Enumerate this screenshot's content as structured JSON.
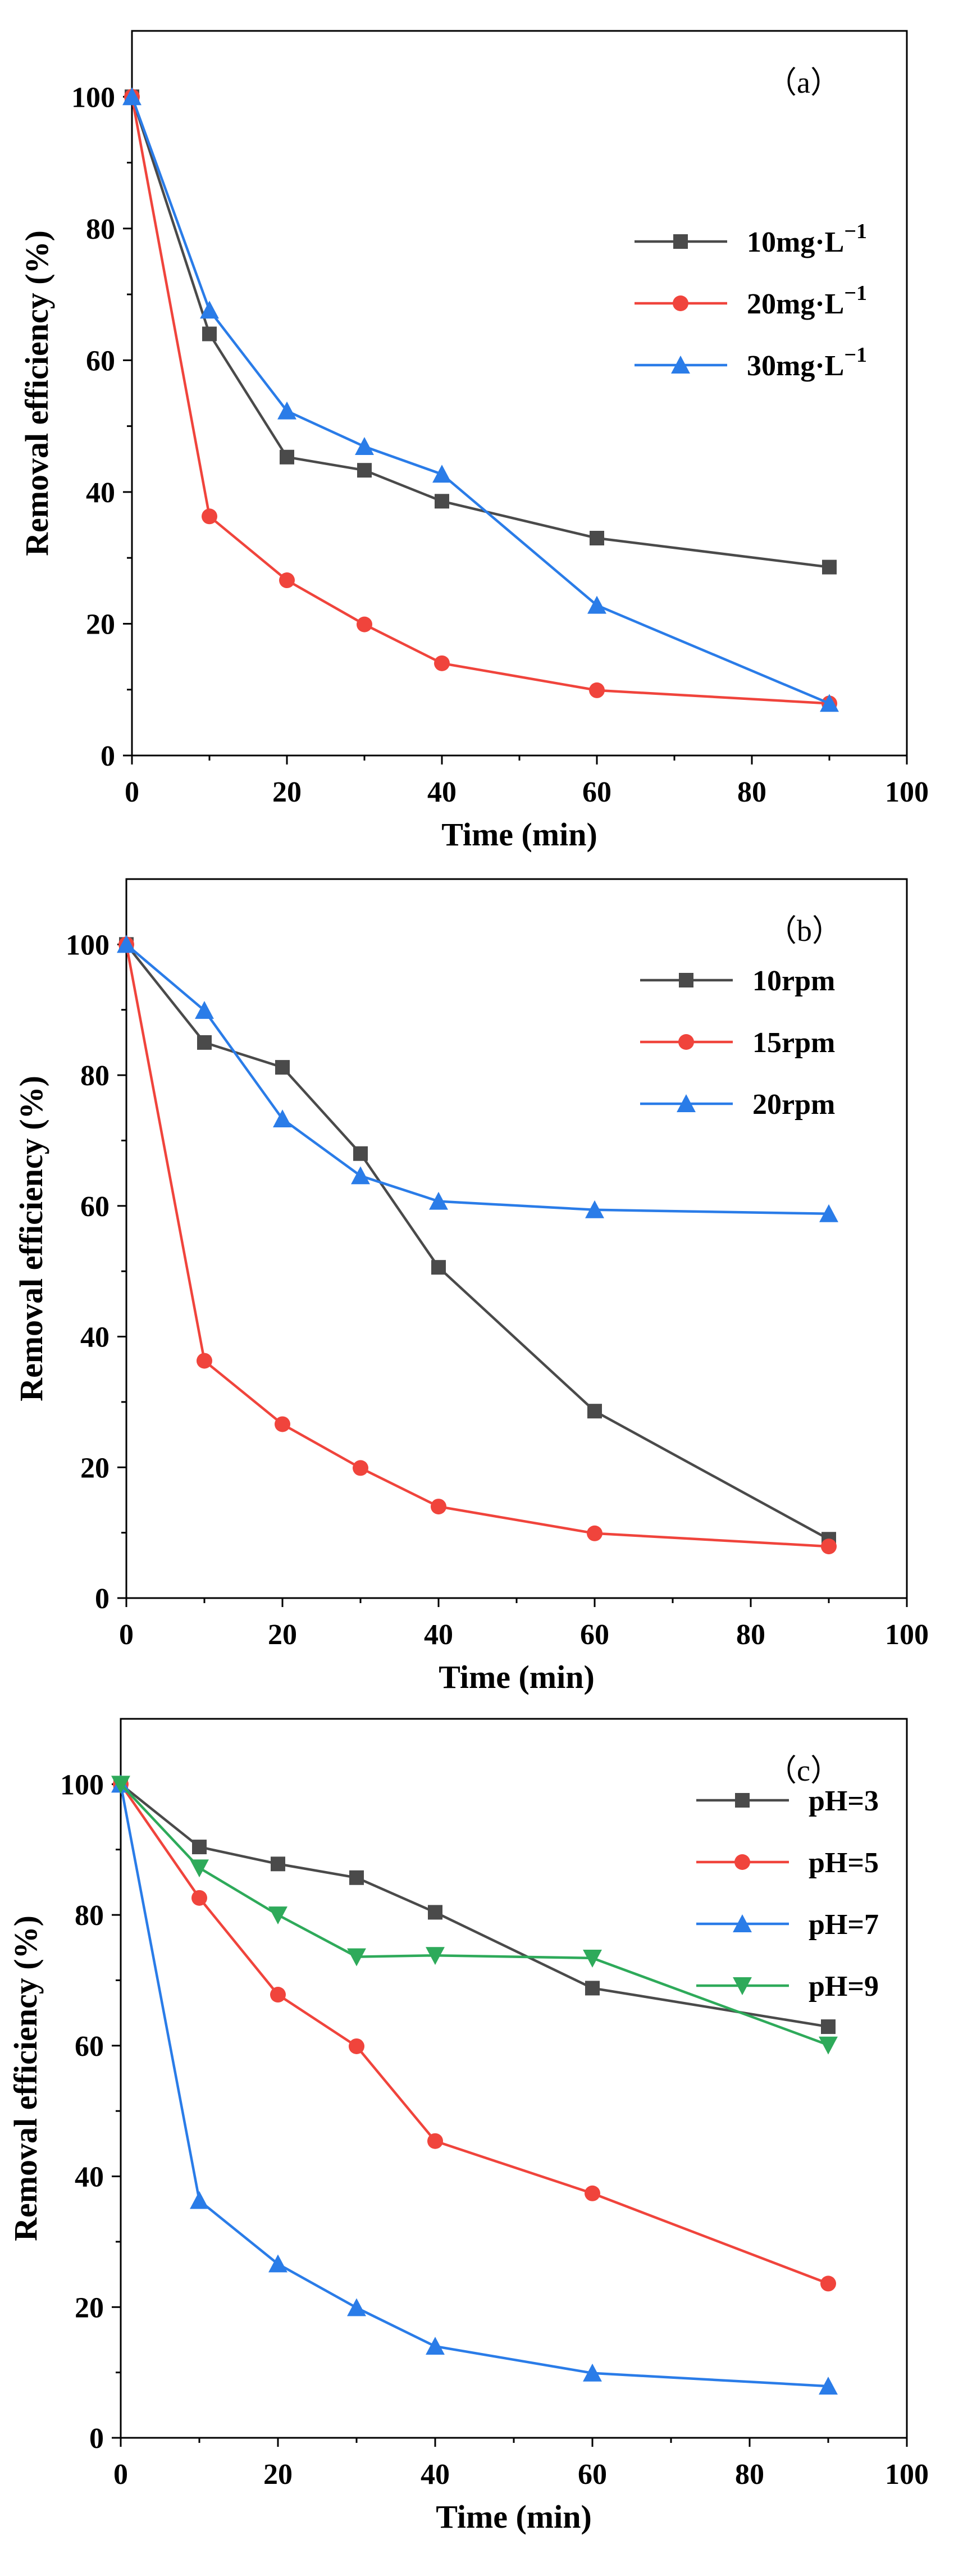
{
  "chart_data": [
    {
      "type": "line",
      "panel_label": "（a）",
      "xlabel": "Time (min)",
      "ylabel": "Removal efficiency (%)",
      "xlim": [
        0,
        100
      ],
      "ylim": [
        0,
        110
      ],
      "xticks": [
        0,
        20,
        40,
        60,
        80,
        100
      ],
      "yticks": [
        0,
        20,
        40,
        60,
        80,
        100
      ],
      "legend_position": "top-right",
      "x": [
        0,
        10,
        20,
        30,
        40,
        60,
        90
      ],
      "series": [
        {
          "name": "10mg·L",
          "sup": "−1",
          "color": "#4a4a4a",
          "marker": "square",
          "values": [
            100,
            64,
            45.3,
            43.3,
            38.6,
            33,
            28.6
          ]
        },
        {
          "name": "20mg·L",
          "sup": "−1",
          "color": "#f0443c",
          "marker": "circle",
          "values": [
            100,
            36.3,
            26.6,
            19.9,
            14,
            9.9,
            7.9
          ]
        },
        {
          "name": "30mg·L",
          "sup": "−1",
          "color": "#2a7ce8",
          "marker": "triangle-up",
          "values": [
            100,
            67.6,
            52.3,
            46.9,
            42.7,
            22.8,
            7.9
          ]
        }
      ]
    },
    {
      "type": "line",
      "panel_label": "（b）",
      "xlabel": "Time (min)",
      "ylabel": "Removal efficiency (%)",
      "xlim": [
        0,
        100
      ],
      "ylim": [
        0,
        110
      ],
      "xticks": [
        0,
        20,
        40,
        60,
        80,
        100
      ],
      "yticks": [
        0,
        20,
        40,
        60,
        80,
        100
      ],
      "legend_position": "top-right",
      "x": [
        0,
        10,
        20,
        30,
        40,
        60,
        90
      ],
      "series": [
        {
          "name": "10rpm",
          "color": "#4a4a4a",
          "marker": "square",
          "values": [
            100,
            85,
            81.2,
            68,
            50.6,
            28.6,
            9
          ]
        },
        {
          "name": "15rpm",
          "color": "#f0443c",
          "marker": "circle",
          "values": [
            100,
            36.3,
            26.6,
            19.9,
            14,
            9.9,
            7.9
          ]
        },
        {
          "name": "20rpm",
          "color": "#2a7ce8",
          "marker": "triangle-up",
          "values": [
            100,
            89.9,
            73.3,
            64.6,
            60.7,
            59.4,
            58.8
          ]
        }
      ]
    },
    {
      "type": "line",
      "panel_label": "（c）",
      "xlabel": "Time (min)",
      "ylabel": "Removal efficiency (%)",
      "xlim": [
        0,
        100
      ],
      "ylim": [
        0,
        110
      ],
      "xticks": [
        0,
        20,
        40,
        60,
        80,
        100
      ],
      "yticks": [
        0,
        20,
        40,
        60,
        80,
        100
      ],
      "legend_position": "top-right",
      "x": [
        0,
        10,
        20,
        30,
        40,
        60,
        90
      ],
      "series": [
        {
          "name": "pH=3",
          "color": "#4a4a4a",
          "marker": "square",
          "values": [
            100,
            90.4,
            87.8,
            85.7,
            80.4,
            68.8,
            62.9
          ]
        },
        {
          "name": "pH=5",
          "color": "#f0443c",
          "marker": "circle",
          "values": [
            100,
            82.6,
            67.8,
            59.9,
            45.4,
            37.4,
            23.6
          ]
        },
        {
          "name": "pH=7",
          "color": "#2a7ce8",
          "marker": "triangle-up",
          "values": [
            100,
            36.3,
            26.6,
            19.9,
            14,
            9.9,
            7.9
          ]
        },
        {
          "name": "pH=9",
          "color": "#2eaa5a",
          "marker": "triangle-down",
          "values": [
            100,
            87.2,
            80,
            73.6,
            73.8,
            73.4,
            60.1
          ]
        }
      ]
    }
  ]
}
